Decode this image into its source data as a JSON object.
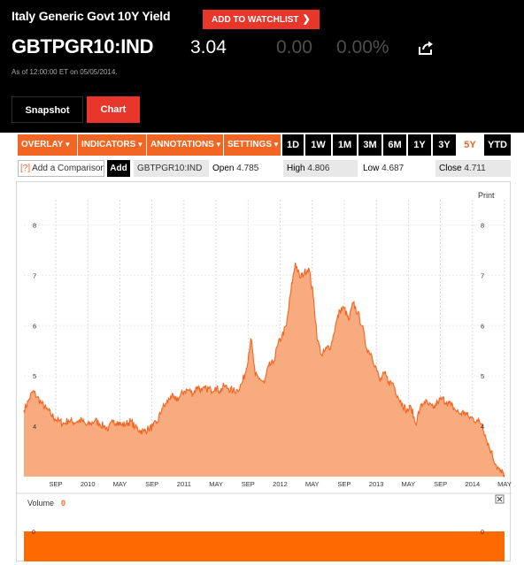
{
  "header": {
    "title": "Italy Generic Govt 10Y Yield",
    "watchlist_label": "ADD TO WATCHLIST",
    "ticker": "GBTPGR10:IND",
    "price": "3.04",
    "change": "0.00",
    "change_pct": "0.00%",
    "as_of": "As of 12:00:00 ET on 05/05/2014."
  },
  "tabs": [
    {
      "label": "Snapshot",
      "active": false
    },
    {
      "label": "Chart",
      "active": true
    }
  ],
  "toolbar": {
    "menus": [
      "OVERLAY",
      "INDICATORS",
      "ANNOTATIONS",
      "SETTINGS"
    ],
    "ranges": [
      "1D",
      "1W",
      "1M",
      "3M",
      "6M",
      "1Y",
      "3Y",
      "5Y",
      "YTD"
    ],
    "active_range": "5Y"
  },
  "info": {
    "compare_help": "[?]",
    "compare_placeholder": "Add a Comparison",
    "add_label": "Add",
    "symbol": "GBTPGR10:IND",
    "open_label": "Open",
    "open": "4.785",
    "high_label": "High",
    "high": "4.806",
    "low_label": "Low",
    "low": "4.687",
    "close_label": "Close",
    "close": "4.711"
  },
  "print_label": "Print",
  "volume": {
    "label": "Volume",
    "value": "0",
    "axis_value": "0"
  },
  "colors": {
    "accent": "#f26522",
    "area_fill": "#f9ab80",
    "watchlist": "#e8362b"
  },
  "chart_data": {
    "type": "area",
    "series": [
      {
        "values": [
          4.32,
          4.5,
          4.7,
          4.58,
          4.45,
          4.35,
          4.25,
          4.15,
          4.1,
          4.05,
          4.12,
          4.08,
          4.1,
          4.12,
          4.02,
          4.05,
          4.12,
          4.05,
          4.0,
          3.95,
          4.08,
          4.1,
          4.02,
          4.05,
          4.1,
          3.98,
          3.92,
          3.9,
          3.95,
          4.0,
          4.08,
          4.35,
          4.45,
          4.6,
          4.52,
          4.58,
          4.7,
          4.72,
          4.65,
          4.8,
          4.7,
          4.75,
          4.72,
          4.78,
          4.7,
          4.8,
          4.75,
          4.7,
          4.72,
          4.85,
          5.15,
          5.75,
          5.0,
          4.95,
          4.85,
          5.2,
          5.25,
          5.6,
          5.8,
          6.0,
          6.7,
          7.25,
          6.95,
          7.05,
          7.15,
          6.6,
          5.7,
          5.4,
          5.55,
          5.6,
          6.0,
          6.3,
          6.35,
          6.1,
          6.45,
          6.25,
          6.0,
          5.55,
          5.45,
          5.2,
          4.9,
          5.05,
          4.88,
          4.85,
          4.6,
          4.45,
          4.3,
          4.38,
          4.05,
          4.35,
          4.5,
          4.42,
          4.35,
          4.48,
          4.55,
          4.48,
          4.42,
          4.32,
          4.25,
          4.28,
          4.18,
          4.15,
          4.1,
          4.05,
          3.72,
          3.5,
          3.25,
          3.1,
          3.04
        ]
      }
    ],
    "x_ticks": [
      "SEP",
      "2010",
      "MAY",
      "SEP",
      "2011",
      "MAY",
      "SEP",
      "2012",
      "MAY",
      "SEP",
      "2013",
      "MAY",
      "SEP",
      "2014",
      "MAY"
    ],
    "y_ticks": [
      "4",
      "5",
      "6",
      "7",
      "8"
    ],
    "ylim": [
      3,
      8.5
    ]
  }
}
